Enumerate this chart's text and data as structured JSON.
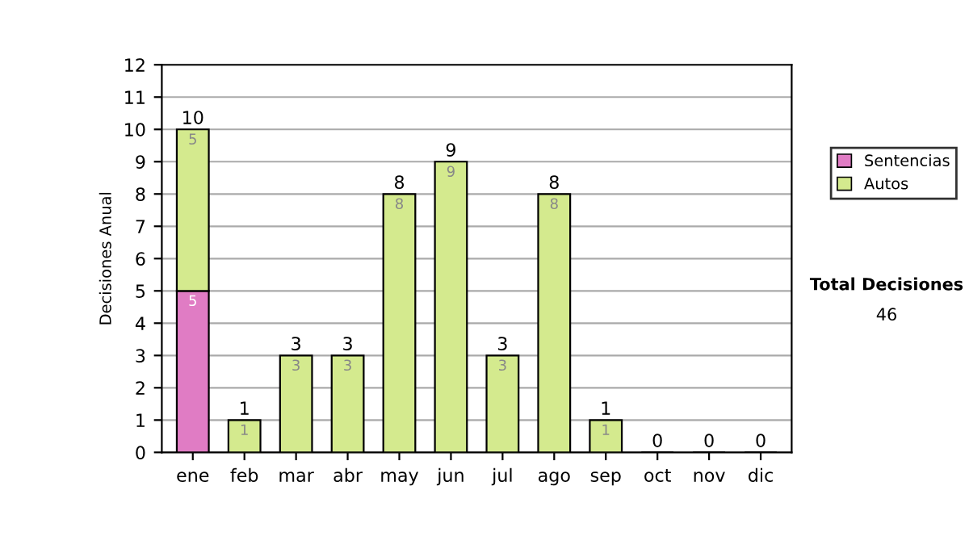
{
  "chart_data": {
    "type": "bar",
    "stacked": true,
    "ylabel": "Decisiones Anual",
    "categories": [
      "ene",
      "feb",
      "mar",
      "abr",
      "may",
      "jun",
      "jul",
      "ago",
      "sep",
      "oct",
      "nov",
      "dic"
    ],
    "series": [
      {
        "name": "Sentencias",
        "color": "#e07cc4",
        "values": [
          5,
          0,
          0,
          0,
          0,
          0,
          0,
          0,
          0,
          0,
          0,
          0
        ],
        "value_labels": [
          "5",
          null,
          null,
          null,
          null,
          null,
          null,
          null,
          null,
          null,
          null,
          null
        ]
      },
      {
        "name": "Autos",
        "color": "#d4ea8e",
        "values": [
          5,
          1,
          3,
          3,
          8,
          9,
          3,
          8,
          1,
          0,
          0,
          0
        ],
        "value_labels": [
          "5",
          "1",
          "3",
          "3",
          "8",
          "9",
          "3",
          "8",
          "1",
          null,
          null,
          null
        ]
      }
    ],
    "totals": [
      "10",
      "1",
      "3",
      "3",
      "8",
      "9",
      "3",
      "8",
      "1",
      "0",
      "0",
      "0"
    ],
    "ylim": [
      0,
      12
    ],
    "yticks": [
      0,
      1,
      2,
      3,
      4,
      5,
      6,
      7,
      8,
      9,
      10,
      11,
      12
    ],
    "grid": "y",
    "legend": "right",
    "annotations": [
      "Total Decisiones",
      "46"
    ]
  }
}
